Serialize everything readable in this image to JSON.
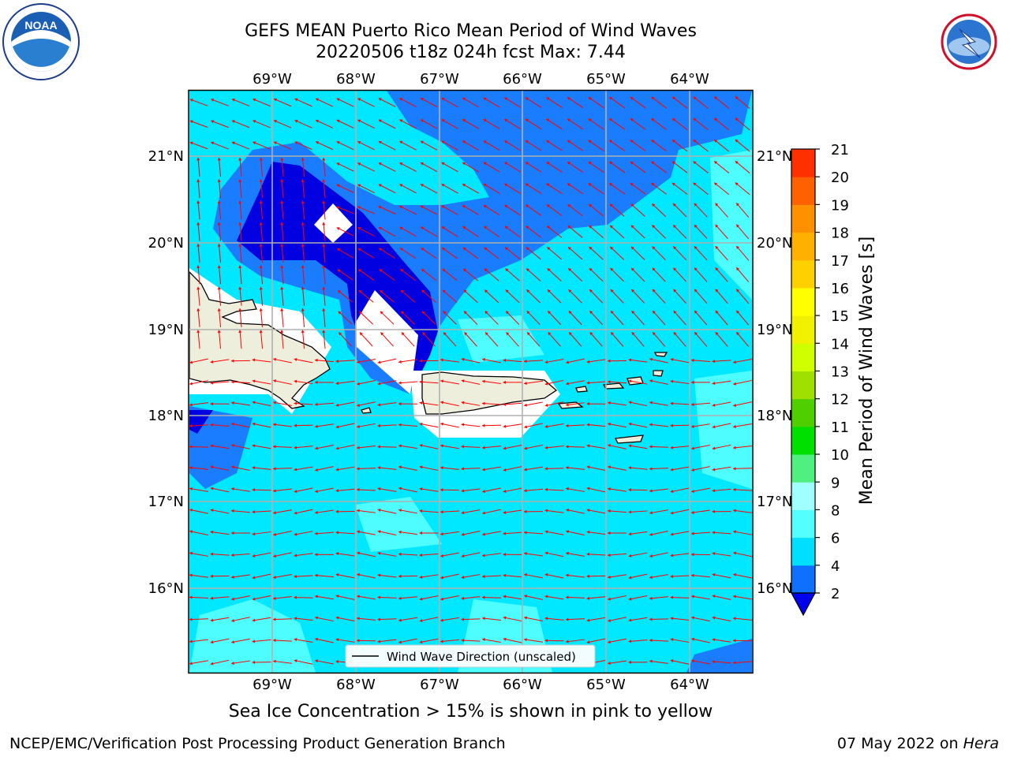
{
  "title_line1": "GEFS MEAN Puerto Rico Mean Period of Wind Waves",
  "title_line2": "20220506 t18z 024h fcst   Max: 7.44",
  "map": {
    "lon_ticks": [
      "69°W",
      "68°W",
      "67°W",
      "66°W",
      "65°W",
      "64°W"
    ],
    "lat_ticks": [
      "21°N",
      "20°N",
      "19°N",
      "18°N",
      "17°N",
      "16°N"
    ],
    "legend_label": "Wind Wave Direction (unscaled)",
    "arrow_color": "#ff0000",
    "land_color": "#eeeedd"
  },
  "colorbar": {
    "label": "Mean Period of Wind Waves [s]",
    "levels": [
      2,
      4,
      6,
      8,
      9,
      10,
      11,
      12,
      13,
      14,
      15,
      16,
      17,
      18,
      19,
      20,
      21
    ],
    "tick_labels": [
      "2",
      "4",
      "6",
      "8",
      "9",
      "10",
      "11",
      "12",
      "13",
      "14",
      "15",
      "16",
      "17",
      "18",
      "19",
      "20",
      "21"
    ],
    "colors": [
      "#0f70ff",
      "#00dfff",
      "#54ffff",
      "#a0ffff",
      "#50f080",
      "#00e000",
      "#4fcf00",
      "#a0e000",
      "#d0ff00",
      "#f0f000",
      "#ffff00",
      "#ffd000",
      "#ffb000",
      "#ff9000",
      "#ff6000",
      "#ff3000"
    ],
    "extend_color": "#0000ee"
  },
  "subtitle": "Sea Ice Concentration > 15% is shown in pink to yellow",
  "footer_left": "NCEP/EMC/Verification Post Processing Product Generation Branch",
  "footer_right_date": "07 May 2022 on ",
  "footer_right_host": "Hera",
  "logos": {
    "left": "noaa-logo",
    "right": "nws-logo"
  }
}
